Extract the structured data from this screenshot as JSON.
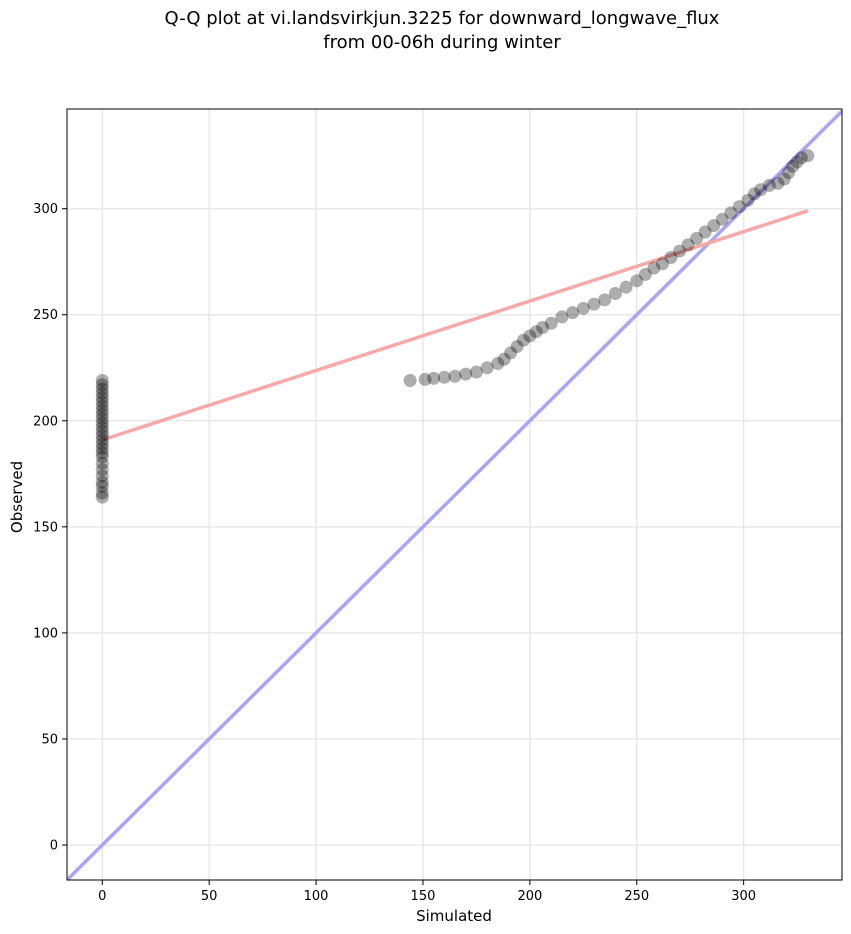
{
  "chart_data": {
    "type": "scatter",
    "title": [
      "Q-Q plot at vi.landsvirkjun.3225 for downward_longwave_flux",
      "from 00-06h during winter"
    ],
    "xlabel": "Simulated",
    "ylabel": "Observed",
    "xlim": [
      -16.5,
      346
    ],
    "ylim": [
      -16.5,
      347
    ],
    "xticks": [
      0,
      50,
      100,
      150,
      200,
      250,
      300
    ],
    "yticks": [
      0,
      50,
      100,
      150,
      200,
      250,
      300
    ],
    "grid": true,
    "colors": {
      "points": "#000000",
      "identity_line": "#a6a6f5",
      "fit_line": "#f7a8a8",
      "grid": "#e8e8e8"
    },
    "series": [
      {
        "kind": "points",
        "points": [
          [
            0,
            164
          ],
          [
            0,
            166
          ],
          [
            0,
            169
          ],
          [
            0,
            171
          ],
          [
            0,
            174
          ],
          [
            0,
            177
          ],
          [
            0,
            180
          ],
          [
            0,
            183
          ],
          [
            0,
            185
          ],
          [
            0,
            187
          ],
          [
            0,
            189
          ],
          [
            0,
            191
          ],
          [
            0,
            193
          ],
          [
            0,
            195
          ],
          [
            0,
            197
          ],
          [
            0,
            199
          ],
          [
            0,
            201
          ],
          [
            0,
            203
          ],
          [
            0,
            205
          ],
          [
            0,
            207
          ],
          [
            0,
            209
          ],
          [
            0,
            211
          ],
          [
            0,
            213
          ],
          [
            0,
            215
          ],
          [
            0,
            217
          ],
          [
            0,
            219
          ],
          [
            144,
            219
          ],
          [
            151,
            219.5
          ],
          [
            155,
            220
          ],
          [
            160,
            220.5
          ],
          [
            165,
            221
          ],
          [
            170,
            222
          ],
          [
            175,
            223
          ],
          [
            180,
            225
          ],
          [
            185,
            227
          ],
          [
            188,
            229
          ],
          [
            191,
            232
          ],
          [
            194,
            235
          ],
          [
            197,
            238
          ],
          [
            200,
            240
          ],
          [
            203,
            242
          ],
          [
            206,
            244
          ],
          [
            210,
            246
          ],
          [
            215,
            249
          ],
          [
            220,
            251
          ],
          [
            225,
            253
          ],
          [
            230,
            255
          ],
          [
            235,
            257
          ],
          [
            240,
            260
          ],
          [
            245,
            263
          ],
          [
            250,
            266
          ],
          [
            254,
            269
          ],
          [
            258,
            272
          ],
          [
            262,
            274
          ],
          [
            266,
            277
          ],
          [
            270,
            280
          ],
          [
            274,
            283
          ],
          [
            278,
            286
          ],
          [
            282,
            289
          ],
          [
            286,
            292
          ],
          [
            290,
            295
          ],
          [
            294,
            298
          ],
          [
            298,
            301
          ],
          [
            302,
            304
          ],
          [
            305,
            307
          ],
          [
            308,
            309
          ],
          [
            312,
            311
          ],
          [
            316,
            312
          ],
          [
            319,
            314
          ],
          [
            321,
            317
          ],
          [
            323,
            320
          ],
          [
            325,
            322
          ],
          [
            327,
            324
          ],
          [
            330,
            325
          ]
        ]
      },
      {
        "kind": "line",
        "name": "",
        "points": [
          [
            -16.5,
            -16.5
          ],
          [
            346,
            346
          ]
        ]
      },
      {
        "kind": "line",
        "name": "",
        "points": [
          [
            0,
            191
          ],
          [
            330,
            299
          ]
        ]
      }
    ]
  }
}
